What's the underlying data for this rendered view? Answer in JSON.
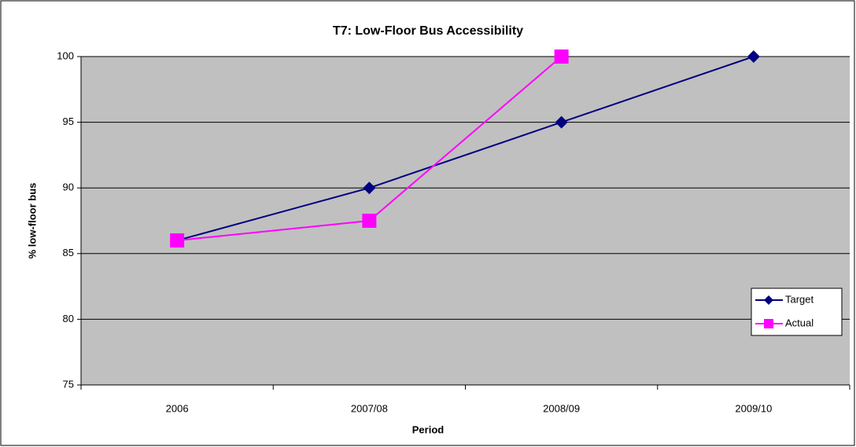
{
  "chart_data": {
    "type": "line",
    "title": "T7: Low-Floor Bus Accessibility",
    "x_label": "Period",
    "y_label": "% low-floor bus",
    "categories": [
      "2006",
      "2007/08",
      "2008/09",
      "2009/10"
    ],
    "series": [
      {
        "name": "Target",
        "color": "#000080",
        "marker": "diamond",
        "values": [
          86,
          90,
          95,
          100
        ]
      },
      {
        "name": "Actual",
        "color": "#ff00ff",
        "marker": "square",
        "values": [
          86,
          87.5,
          100,
          null
        ]
      }
    ],
    "ylim": [
      75,
      100
    ],
    "yticks": [
      75,
      80,
      85,
      90,
      95,
      100
    ],
    "grid": true,
    "legend": "right"
  }
}
